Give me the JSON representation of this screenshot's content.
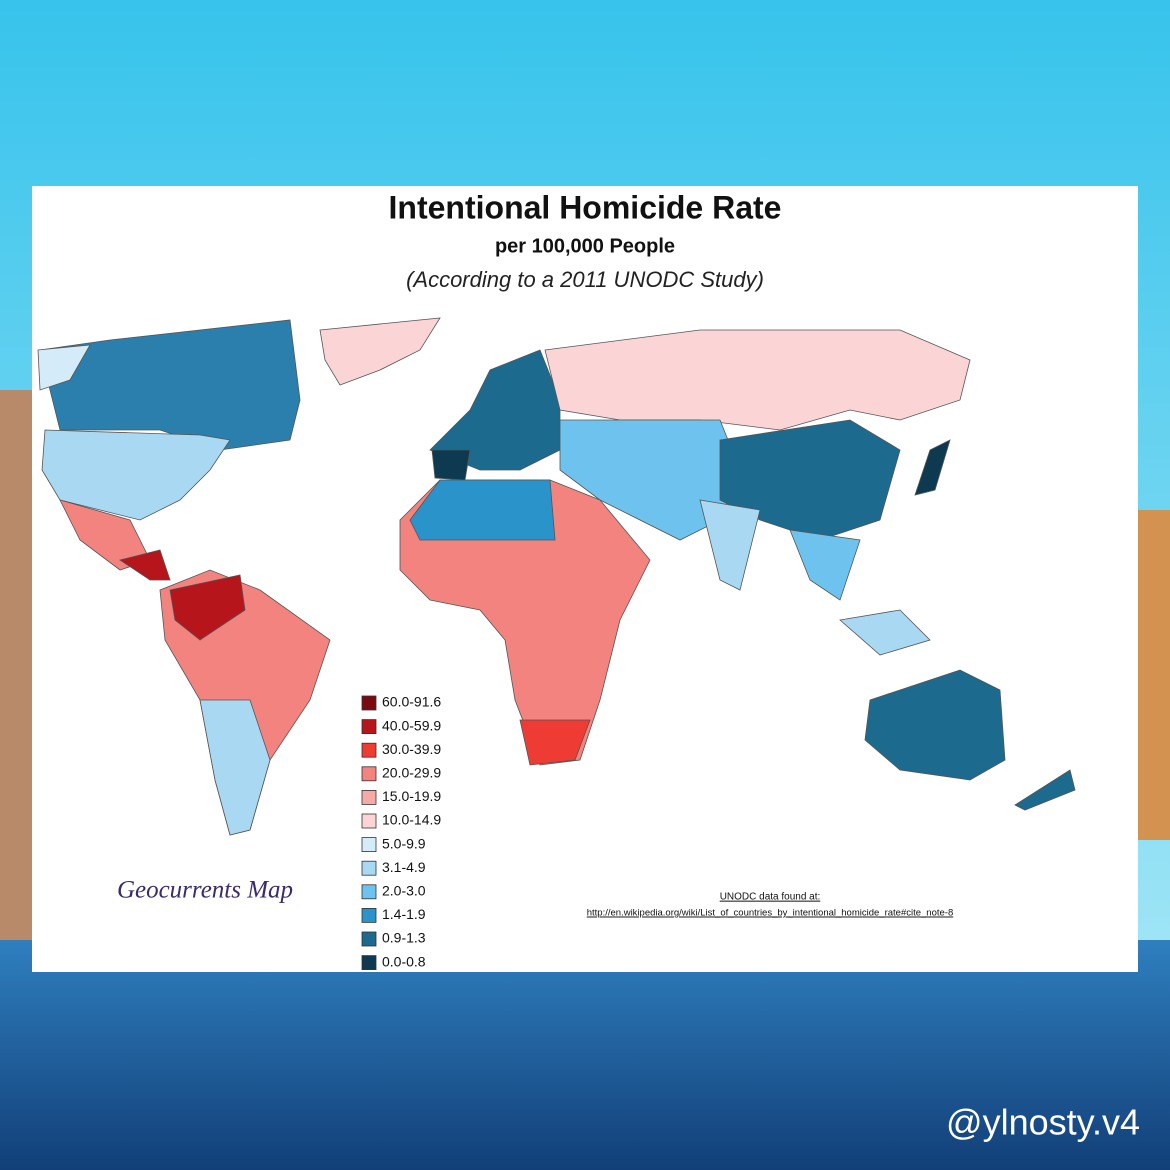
{
  "header": {
    "title": "Intentional Homicide Rate",
    "subtitle": "per 100,000 People",
    "note": "(According to a 2011 UNODC Study)"
  },
  "legend": {
    "items": [
      {
        "label": "60.0-91.6",
        "color": "#7b0a10"
      },
      {
        "label": "40.0-59.9",
        "color": "#b5151b"
      },
      {
        "label": "30.0-39.9",
        "color": "#ee3b34"
      },
      {
        "label": "20.0-29.9",
        "color": "#f2837f"
      },
      {
        "label": "15.0-19.9",
        "color": "#f6aaa8"
      },
      {
        "label": "10.0-14.9",
        "color": "#fbd5d5"
      },
      {
        "label": "5.0-9.9",
        "color": "#d4ecfa"
      },
      {
        "label": "3.1-4.9",
        "color": "#a9d8f3"
      },
      {
        "label": "2.0-3.0",
        "color": "#6dc3ee"
      },
      {
        "label": "1.4-1.9",
        "color": "#2a93c9"
      },
      {
        "label": "0.9-1.3",
        "color": "#1d6a8f"
      },
      {
        "label": "0.0-0.8",
        "color": "#0d3a50"
      }
    ]
  },
  "credit": "Geocurrents Map",
  "source": {
    "line1": "UNODC data found at:",
    "line2": "http://en.wikipedia.org/wiki/List_of_countries_by_intentional_homicide_rate#cite_note-8"
  },
  "watermark": "@ylnosty.v4"
}
